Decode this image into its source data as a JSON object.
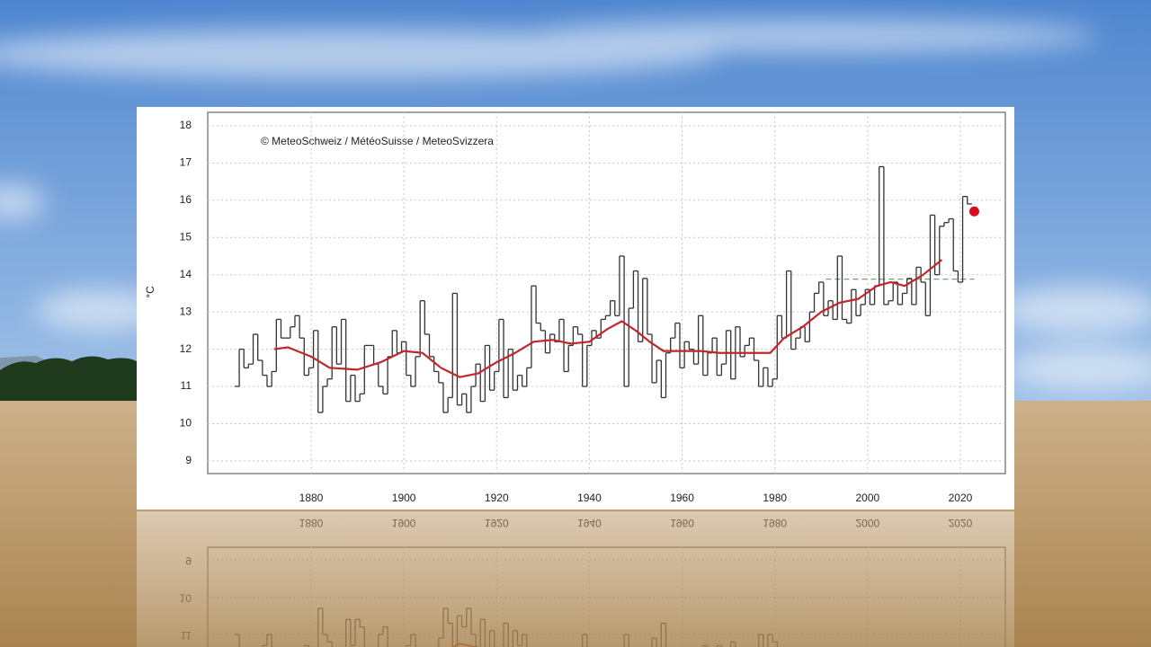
{
  "chart_data": {
    "type": "line",
    "annotation": "© MeteoSchweiz / MétéoSuisse / MeteoSvizzera",
    "y_label": "°C",
    "xlim": [
      1857.7,
      2029.7
    ],
    "ylim": [
      8.66,
      18.36
    ],
    "xticks": [
      1880,
      1900,
      1920,
      1940,
      1960,
      1980,
      2000,
      2020
    ],
    "yticks": [
      9,
      10,
      11,
      12,
      13,
      14,
      15,
      16,
      17,
      18
    ],
    "grid": true,
    "series": [
      {
        "style": "step",
        "color": "#333333",
        "x": [
          1864,
          1865,
          1866,
          1867,
          1868,
          1869,
          1870,
          1871,
          1872,
          1873,
          1874,
          1875,
          1876,
          1877,
          1878,
          1879,
          1880,
          1881,
          1882,
          1883,
          1884,
          1885,
          1886,
          1887,
          1888,
          1889,
          1890,
          1891,
          1892,
          1893,
          1894,
          1895,
          1896,
          1897,
          1898,
          1899,
          1900,
          1901,
          1902,
          1903,
          1904,
          1905,
          1906,
          1907,
          1908,
          1909,
          1910,
          1911,
          1912,
          1913,
          1914,
          1915,
          1916,
          1917,
          1918,
          1919,
          1920,
          1921,
          1922,
          1923,
          1924,
          1925,
          1926,
          1927,
          1928,
          1929,
          1930,
          1931,
          1932,
          1933,
          1934,
          1935,
          1936,
          1937,
          1938,
          1939,
          1940,
          1941,
          1942,
          1943,
          1944,
          1945,
          1946,
          1947,
          1948,
          1949,
          1950,
          1951,
          1952,
          1953,
          1954,
          1955,
          1956,
          1957,
          1958,
          1959,
          1960,
          1961,
          1962,
          1963,
          1964,
          1965,
          1966,
          1967,
          1968,
          1969,
          1970,
          1971,
          1972,
          1973,
          1974,
          1975,
          1976,
          1977,
          1978,
          1979,
          1980,
          1981,
          1982,
          1983,
          1984,
          1985,
          1986,
          1987,
          1988,
          1989,
          1990,
          1991,
          1992,
          1993,
          1994,
          1995,
          1996,
          1997,
          1998,
          1999,
          2000,
          2001,
          2002,
          2003,
          2004,
          2005,
          2006,
          2007,
          2008,
          2009,
          2010,
          2011,
          2012,
          2013,
          2014,
          2015,
          2016,
          2017,
          2018,
          2019,
          2020,
          2021,
          2022
        ],
        "values": [
          11.0,
          12.0,
          11.5,
          11.6,
          12.4,
          11.7,
          11.3,
          11.0,
          11.4,
          12.8,
          12.3,
          12.3,
          12.6,
          12.9,
          12.3,
          11.3,
          11.5,
          12.5,
          10.3,
          11.0,
          11.2,
          12.6,
          11.6,
          12.8,
          10.6,
          11.3,
          10.6,
          10.8,
          12.1,
          12.1,
          11.6,
          11.0,
          10.8,
          11.8,
          12.5,
          11.9,
          12.2,
          11.3,
          11.0,
          11.8,
          13.3,
          12.4,
          11.8,
          11.4,
          11.1,
          10.3,
          10.7,
          13.5,
          10.5,
          10.8,
          10.3,
          11.0,
          11.6,
          10.6,
          12.1,
          10.9,
          11.4,
          12.8,
          10.7,
          12.0,
          10.9,
          11.3,
          11.0,
          11.5,
          13.7,
          12.7,
          12.5,
          11.9,
          12.4,
          12.2,
          12.8,
          11.4,
          12.1,
          12.6,
          12.4,
          11.0,
          12.1,
          12.5,
          12.3,
          12.8,
          12.9,
          13.3,
          12.9,
          14.5,
          11.0,
          13.1,
          14.1,
          12.2,
          13.9,
          12.4,
          11.1,
          11.7,
          10.7,
          11.9,
          12.3,
          12.7,
          11.5,
          12.2,
          12.0,
          11.6,
          12.9,
          11.3,
          11.9,
          12.3,
          11.3,
          11.6,
          12.5,
          11.2,
          12.6,
          11.8,
          12.1,
          12.3,
          11.7,
          11.0,
          11.5,
          11.0,
          11.2,
          12.9,
          12.3,
          14.1,
          12.0,
          12.3,
          12.6,
          12.2,
          13.0,
          13.5,
          13.8,
          12.9,
          13.3,
          12.8,
          14.5,
          12.8,
          12.7,
          13.6,
          12.9,
          13.2,
          13.6,
          13.2,
          13.7,
          16.9,
          13.2,
          13.3,
          13.8,
          13.2,
          13.5,
          13.9,
          13.2,
          14.2,
          13.8,
          12.9,
          15.6,
          14.0,
          15.3,
          15.4,
          15.5,
          14.1,
          13.8,
          16.1,
          15.9
        ]
      },
      {
        "style": "line",
        "color": "#c0272d",
        "x": [
          1872,
          1875,
          1880,
          1884,
          1890,
          1895,
          1900,
          1904,
          1908,
          1912,
          1916,
          1920,
          1924,
          1928,
          1932,
          1936,
          1940,
          1944,
          1947,
          1950,
          1953,
          1956,
          1960,
          1964,
          1968,
          1972,
          1976,
          1979,
          1982,
          1986,
          1990,
          1994,
          1998,
          2002,
          2005,
          2008,
          2012,
          2016
        ],
        "values": [
          12.0,
          12.05,
          11.8,
          11.5,
          11.45,
          11.65,
          11.95,
          11.9,
          11.5,
          11.25,
          11.35,
          11.65,
          11.9,
          12.2,
          12.25,
          12.15,
          12.2,
          12.55,
          12.75,
          12.5,
          12.2,
          11.95,
          11.95,
          11.95,
          11.9,
          11.9,
          11.9,
          11.9,
          12.3,
          12.6,
          13.0,
          13.25,
          13.35,
          13.7,
          13.8,
          13.7,
          14.0,
          14.4
        ]
      },
      {
        "style": "dashed",
        "color": "#5aa05a",
        "x": [
          1991,
          2023
        ],
        "values": [
          13.88,
          13.88
        ]
      },
      {
        "style": "point",
        "color": "#d4101c",
        "x": [
          2023
        ],
        "values": [
          15.7
        ]
      }
    ]
  }
}
